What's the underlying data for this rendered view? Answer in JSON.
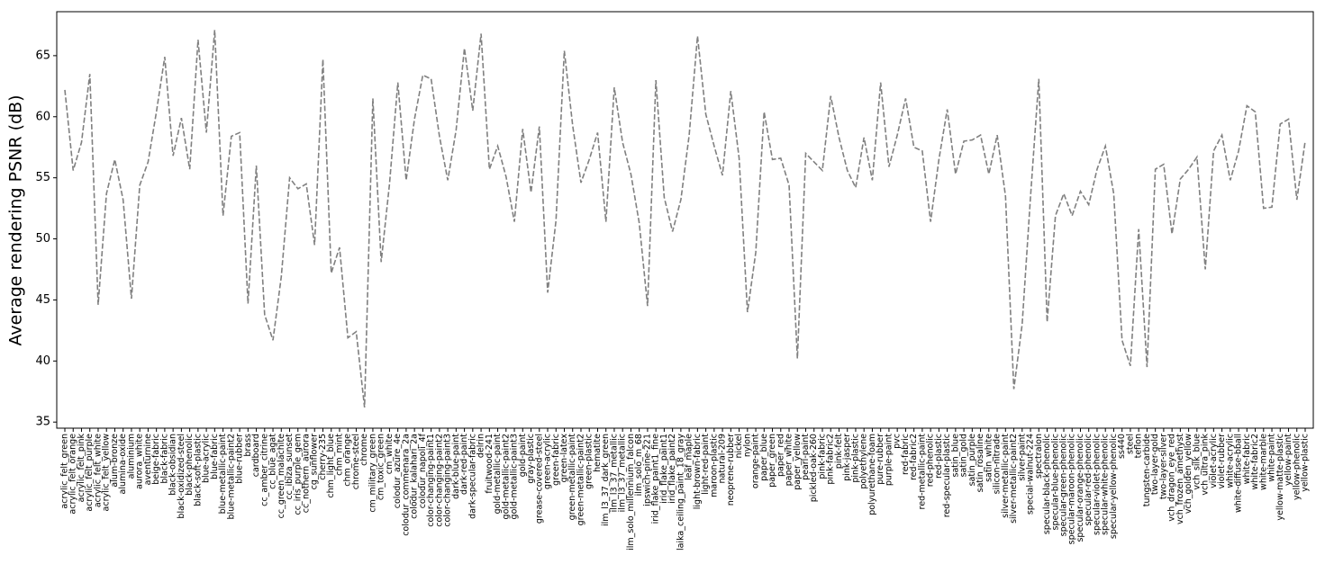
{
  "chart_data": {
    "type": "line",
    "ylabel": "Average rendering PSNR (dB)",
    "categories": [
      "acrylic_felt_green",
      "acrylic_felt_orange",
      "acrylic_felt_pink",
      "acrylic_felt_purple",
      "acrylic_felt_white",
      "acrylic_felt_yellow",
      "alum-bronze",
      "alumina-oxide",
      "aluminium",
      "aurora_white",
      "aventurnine",
      "beige-fabric",
      "black-fabric",
      "black-obsidian",
      "black-oxidized-steel",
      "black-phenolic",
      "black-soft-plastic",
      "blue-acrylic",
      "blue-fabric",
      "blue-metallic-paint",
      "blue-metallic-paint2",
      "blue-rubber",
      "brass",
      "cardboard",
      "cc_amber_citrine",
      "cc_blue_agat",
      "cc_green_malachite",
      "cc_ibiza_sunset",
      "cc_iris_purple_gem",
      "cc_nothern_aurora",
      "cg_sunflower",
      "cherry-235",
      "chm_light_blue",
      "chm_mint",
      "chm_orange",
      "chrome-steel",
      "chrome",
      "cm_military_green",
      "cm_toxic_green",
      "cm_white",
      "colodur_azure_4e",
      "colodur_commenara_2a",
      "colodur_kalahari_2a",
      "colodur_napoli_4f",
      "color-changing-paint1",
      "color-changing-paint2",
      "color-changing-paint3",
      "dark-blue-paint",
      "dark-red-paint",
      "dark-specular-fabric",
      "delrin",
      "fruitwood-241",
      "gold-metallic-paint",
      "gold-metallic-paint2",
      "gold-metallic-paint3",
      "gold-paint",
      "gray-plastic",
      "grease-covered-steel",
      "green-acrylic",
      "green-fabric",
      "green-latex",
      "green-metallic-paint",
      "green-metallic-paint2",
      "green-plastic",
      "hematite",
      "ilm_l3_37_dark_green",
      "ilm_l3_37_metallic",
      "ilm_l3_37_metallic",
      "ilm_solo_millennium_falcon",
      "ilm_solo_m_68",
      "ipswich-pine-221",
      "irid_flake_paint1_fine",
      "irid_flake_paint1",
      "irid_flake_paint2",
      "laika_ceiling_paint_18_gray",
      "leaf_maple",
      "light-brown-fabric",
      "light-red-paint",
      "maroon-plastic",
      "natural-209",
      "neoprene-rubber",
      "nickel",
      "nylon",
      "orange-paint",
      "paper_blue",
      "paper_green",
      "paper_red",
      "paper_white",
      "paper_yellow",
      "pearl-paint",
      "pickled-oak-260",
      "pink-fabric",
      "pink-fabric2",
      "pink-felt",
      "pink-jasper",
      "pink-plastic",
      "polyethylene",
      "polyurethane-foam",
      "pure-rubber",
      "purple-paint",
      "pvc",
      "red-fabric",
      "red-fabric2",
      "red-metallic-paint",
      "red-phenolic",
      "red-plastic",
      "red-specular-plastic",
      "satin_blue",
      "satin_gold",
      "satin_purple",
      "satin_rosaline",
      "satin_white",
      "silicon-nitrade",
      "silver-metallic-paint",
      "silver-metallic-paint2",
      "silver-paint",
      "special-walnut-224",
      "spectralon",
      "specular-black-phenolic",
      "specular-blue-phenolic",
      "specular-green-phenolic",
      "specular-maroon-phenolic",
      "specular-orange-phenolic",
      "specular-red-phenolic",
      "specular-violet-phenolic",
      "specular-white-phenolic",
      "specular-yellow-phenolic",
      "ss440",
      "steel",
      "teflon",
      "tungsten-carbide",
      "two-layer-gold",
      "two-layer-silver",
      "vch_dragon_eye_red",
      "vch_frozen_amethyst",
      "vch_golden_yellow",
      "vch_silk_blue",
      "vch_ultra_pink",
      "violet-acrylic",
      "violet-rubber",
      "white-acrylic",
      "white-diffuse-bball",
      "white-fabric",
      "white-fabric2",
      "white-marble",
      "white-paint",
      "yellow-matte-plastic",
      "yellow-paint",
      "yellow-phenolic",
      "yellow-plastic"
    ],
    "values": [
      62.2,
      55.6,
      57.9,
      63.5,
      44.6,
      53.7,
      56.5,
      53.2,
      45.1,
      54.4,
      56.3,
      60.4,
      64.9,
      56.8,
      59.9,
      55.7,
      66.3,
      58.7,
      67.1,
      51.9,
      58.4,
      58.7,
      44.7,
      56.0,
      43.8,
      41.7,
      46.9,
      55.0,
      54.1,
      54.5,
      49.5,
      64.7,
      47.2,
      49.3,
      41.9,
      42.4,
      36.2,
      61.5,
      48.1,
      54.5,
      62.8,
      54.8,
      59.8,
      63.4,
      63.1,
      58.4,
      54.8,
      58.9,
      65.6,
      60.5,
      66.8,
      55.7,
      57.6,
      55.1,
      51.4,
      59.0,
      53.8,
      59.2,
      45.6,
      51.5,
      65.4,
      59.3,
      54.6,
      56.5,
      58.7,
      51.4,
      62.4,
      57.9,
      55.3,
      51.3,
      44.5,
      63.0,
      53.4,
      50.6,
      53.2,
      58.5,
      66.6,
      60.2,
      57.6,
      55.2,
      62.1,
      56.6,
      44.0,
      48.9,
      60.4,
      56.5,
      56.6,
      54.4,
      40.2,
      57.0,
      56.3,
      55.6,
      61.7,
      58.3,
      55.6,
      54.2,
      58.3,
      54.8,
      62.8,
      55.9,
      58.5,
      61.5,
      57.5,
      57.2,
      51.4,
      56.5,
      60.6,
      55.3,
      58.0,
      58.1,
      58.5,
      55.3,
      58.5,
      53.5,
      37.7,
      43.0,
      53.4,
      63.1,
      43.2,
      51.9,
      53.7,
      51.9,
      53.9,
      52.8,
      55.7,
      57.6,
      53.7,
      41.7,
      39.6,
      50.8,
      39.5,
      55.7,
      56.1,
      50.4,
      54.9,
      55.7,
      56.7,
      47.5,
      57.2,
      58.5,
      54.8,
      57.2,
      60.9,
      60.4,
      52.5,
      52.6,
      59.4,
      59.8,
      53.2,
      58.0
    ],
    "color": "#808080",
    "line_style": "dashed",
    "ylim": [
      34.5,
      68.6
    ],
    "yticks": [
      35,
      40,
      45,
      50,
      55,
      60,
      65
    ],
    "grid": false
  }
}
